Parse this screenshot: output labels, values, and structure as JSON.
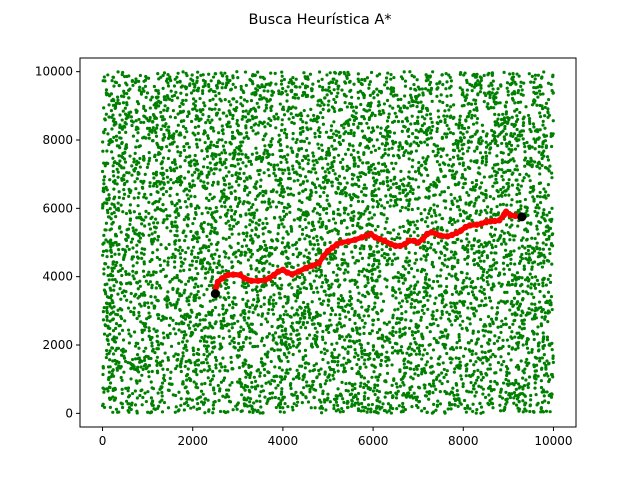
{
  "chart_data": {
    "type": "scatter",
    "title": "Busca Heurística A*",
    "xlabel": "",
    "ylabel": "",
    "xlim": [
      -500,
      10500
    ],
    "ylim": [
      -400,
      10400
    ],
    "x_ticks": [
      0,
      2000,
      4000,
      6000,
      8000,
      10000
    ],
    "y_ticks": [
      0,
      2000,
      4000,
      6000,
      8000,
      10000
    ],
    "x_tick_labels": [
      "0",
      "2000",
      "4000",
      "6000",
      "8000",
      "10000"
    ],
    "y_tick_labels": [
      "0",
      "2000",
      "4000",
      "6000",
      "8000",
      "10000"
    ],
    "grid": false,
    "legend": "none",
    "colors": {
      "nodes": "#008000",
      "path": "#ff0000",
      "endpoints": "#000000",
      "axes": "#000000"
    },
    "series": [
      {
        "role": "nodes",
        "distribution": "uniform",
        "count": 7000,
        "x_range": [
          0,
          10000
        ],
        "y_range": [
          0,
          10000
        ],
        "color": "#008000"
      },
      {
        "role": "path",
        "color": "#ff0000",
        "points": [
          [
            2500,
            3500
          ],
          [
            2520,
            3700
          ],
          [
            2560,
            3850
          ],
          [
            2650,
            3950
          ],
          [
            2780,
            4050
          ],
          [
            2900,
            4060
          ],
          [
            3050,
            4050
          ],
          [
            3150,
            3950
          ],
          [
            3300,
            3880
          ],
          [
            3450,
            3880
          ],
          [
            3600,
            3900
          ],
          [
            3700,
            3960
          ],
          [
            3800,
            4050
          ],
          [
            3900,
            4150
          ],
          [
            4000,
            4200
          ],
          [
            4100,
            4120
          ],
          [
            4200,
            4070
          ],
          [
            4350,
            4150
          ],
          [
            4500,
            4250
          ],
          [
            4650,
            4320
          ],
          [
            4800,
            4400
          ],
          [
            4900,
            4600
          ],
          [
            5000,
            4750
          ],
          [
            5100,
            4850
          ],
          [
            5200,
            4950
          ],
          [
            5300,
            5000
          ],
          [
            5450,
            5030
          ],
          [
            5600,
            5080
          ],
          [
            5750,
            5150
          ],
          [
            5850,
            5200
          ],
          [
            5950,
            5250
          ],
          [
            6050,
            5150
          ],
          [
            6150,
            5100
          ],
          [
            6250,
            5050
          ],
          [
            6400,
            4950
          ],
          [
            6500,
            4900
          ],
          [
            6600,
            4900
          ],
          [
            6700,
            4950
          ],
          [
            6800,
            5050
          ],
          [
            6900,
            5050
          ],
          [
            7000,
            5000
          ],
          [
            7100,
            5100
          ],
          [
            7200,
            5250
          ],
          [
            7300,
            5300
          ],
          [
            7400,
            5250
          ],
          [
            7500,
            5200
          ],
          [
            7650,
            5180
          ],
          [
            7750,
            5220
          ],
          [
            7850,
            5280
          ],
          [
            7950,
            5350
          ],
          [
            8050,
            5450
          ],
          [
            8150,
            5500
          ],
          [
            8300,
            5520
          ],
          [
            8400,
            5550
          ],
          [
            8500,
            5600
          ],
          [
            8600,
            5620
          ],
          [
            8700,
            5630
          ],
          [
            8800,
            5650
          ],
          [
            8900,
            5800
          ],
          [
            8950,
            5900
          ],
          [
            9050,
            5800
          ],
          [
            9150,
            5780
          ],
          [
            9300,
            5750
          ]
        ]
      },
      {
        "role": "endpoints",
        "color": "#000000",
        "points": [
          [
            2500,
            3500
          ],
          [
            9300,
            5750
          ]
        ]
      }
    ]
  }
}
